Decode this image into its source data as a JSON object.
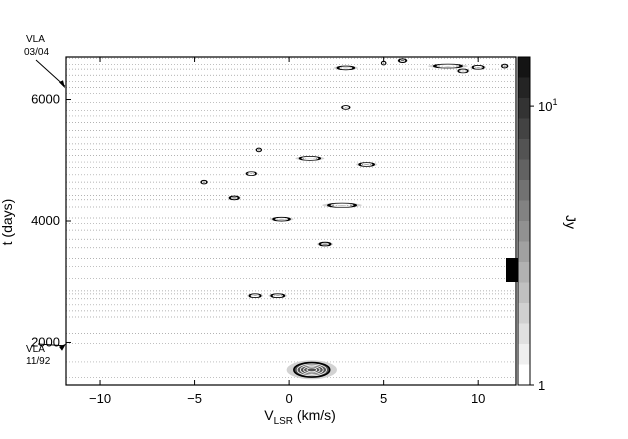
{
  "chart_data": {
    "type": "heatmap",
    "title": "",
    "xlabel_main": "V",
    "xlabel_sub": "LSR",
    "xlabel_unit": " (km/s)",
    "ylabel": "t (days)",
    "colorbar_label": "Jy",
    "xlim": [
      -11.8,
      12.0
    ],
    "ylim": [
      1300,
      6700
    ],
    "x_ticks": [
      -10,
      -5,
      0,
      5,
      10
    ],
    "x_tick_labels": [
      "−10",
      "−5",
      "0",
      "5",
      "10"
    ],
    "y_ticks": [
      2000,
      4000,
      6000
    ],
    "y_tick_labels": [
      "2000",
      "4000",
      "6000"
    ],
    "colorbar": {
      "min": 1,
      "max": 15,
      "scale": "log",
      "labels": [
        {
          "value": 10,
          "text": "10",
          "sup": "1"
        },
        {
          "value": 1,
          "text": "1",
          "sup": ""
        }
      ]
    },
    "observation_epochs": [
      1420,
      1680,
      1980,
      2150,
      2420,
      2520,
      2620,
      2720,
      2800,
      2850,
      3050,
      3250,
      3380,
      3560,
      3700,
      3850,
      3960,
      4050,
      4230,
      4350,
      4420,
      4530,
      4640,
      4760,
      4880,
      4970,
      5080,
      5180,
      5270,
      5380,
      5490,
      5620,
      5730,
      5820,
      5950,
      6100,
      6200,
      6300,
      6400,
      6500,
      6580,
      6680
    ],
    "features": [
      {
        "v": 1.2,
        "t": 1550,
        "dv": 1.9,
        "dt": 240,
        "peak": 14
      },
      {
        "v": -1.8,
        "t": 2770,
        "dv": 0.6,
        "dt": 25,
        "peak": 3
      },
      {
        "v": -0.6,
        "t": 2770,
        "dv": 0.7,
        "dt": 25,
        "peak": 3
      },
      {
        "v": 1.9,
        "t": 3620,
        "dv": 0.6,
        "dt": 22,
        "peak": 2
      },
      {
        "v": -0.4,
        "t": 4030,
        "dv": 0.9,
        "dt": 22,
        "peak": 3
      },
      {
        "v": 2.8,
        "t": 4260,
        "dv": 1.5,
        "dt": 55,
        "peak": 8
      },
      {
        "v": -2.0,
        "t": 4780,
        "dv": 0.5,
        "dt": 45,
        "peak": 4
      },
      {
        "v": 4.1,
        "t": 4930,
        "dv": 0.8,
        "dt": 40,
        "peak": 4
      },
      {
        "v": 1.1,
        "t": 5030,
        "dv": 1.1,
        "dt": 40,
        "peak": 6
      },
      {
        "v": -1.6,
        "t": 5170,
        "dv": 0.25,
        "dt": 20,
        "peak": 2
      },
      {
        "v": 3.0,
        "t": 5870,
        "dv": 0.4,
        "dt": 40,
        "peak": 3
      },
      {
        "v": 3.0,
        "t": 6520,
        "dv": 0.9,
        "dt": 18,
        "peak": 3
      },
      {
        "v": 8.4,
        "t": 6550,
        "dv": 1.5,
        "dt": 45,
        "peak": 8
      },
      {
        "v": 10.0,
        "t": 6530,
        "dv": 0.6,
        "dt": 25,
        "peak": 4
      },
      {
        "v": 9.2,
        "t": 6470,
        "dv": 0.5,
        "dt": 20,
        "peak": 3
      },
      {
        "v": 6.0,
        "t": 6640,
        "dv": 0.4,
        "dt": 15,
        "peak": 2
      },
      {
        "v": 5.0,
        "t": 6600,
        "dv": 0.2,
        "dt": 12,
        "peak": 2
      },
      {
        "v": 11.4,
        "t": 6550,
        "dv": 0.3,
        "dt": 18,
        "peak": 2
      },
      {
        "v": -2.9,
        "t": 4380,
        "dv": 0.5,
        "dt": 14,
        "peak": 1.5
      },
      {
        "v": -4.5,
        "t": 4640,
        "dv": 0.3,
        "dt": 12,
        "peak": 1.5
      }
    ],
    "annotations": [
      {
        "line1": "VLA",
        "line2": "03/04",
        "t": 6680
      },
      {
        "line1": "VLA",
        "line2": "11/92",
        "t": 1980
      }
    ],
    "grid": "dotted epoch lines"
  }
}
